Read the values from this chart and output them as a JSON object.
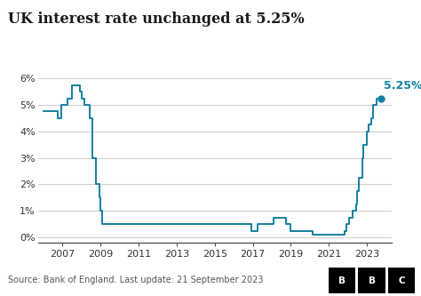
{
  "title": "UK interest rate unchanged at 5.25%",
  "line_color": "#1380a1",
  "annotation_text": "5.25%",
  "annotation_color": "#1380a1",
  "source_text": "Source: Bank of England. Last update: 21 September 2023",
  "xlim": [
    2005.7,
    2024.3
  ],
  "ylim": [
    -0.2,
    6.5
  ],
  "yticks": [
    0,
    1,
    2,
    3,
    4,
    5,
    6
  ],
  "ytick_labels": [
    "0%",
    "1%",
    "2%",
    "3%",
    "4%",
    "5%",
    "6%"
  ],
  "xticks": [
    2007,
    2009,
    2011,
    2013,
    2015,
    2017,
    2019,
    2021,
    2023
  ],
  "background_color": "#ffffff",
  "data": [
    [
      2006.0,
      4.75
    ],
    [
      2006.75,
      4.75
    ],
    [
      2006.75,
      4.5
    ],
    [
      2006.917,
      4.5
    ],
    [
      2006.917,
      5.0
    ],
    [
      2007.25,
      5.0
    ],
    [
      2007.25,
      5.25
    ],
    [
      2007.5,
      5.25
    ],
    [
      2007.5,
      5.75
    ],
    [
      2007.917,
      5.75
    ],
    [
      2007.917,
      5.5
    ],
    [
      2008.0,
      5.5
    ],
    [
      2008.0,
      5.25
    ],
    [
      2008.167,
      5.25
    ],
    [
      2008.167,
      5.0
    ],
    [
      2008.417,
      5.0
    ],
    [
      2008.417,
      4.5
    ],
    [
      2008.583,
      4.5
    ],
    [
      2008.583,
      3.0
    ],
    [
      2008.75,
      3.0
    ],
    [
      2008.75,
      2.0
    ],
    [
      2008.917,
      2.0
    ],
    [
      2008.917,
      1.5
    ],
    [
      2009.0,
      1.5
    ],
    [
      2009.0,
      1.0
    ],
    [
      2009.083,
      1.0
    ],
    [
      2009.083,
      0.5
    ],
    [
      2016.917,
      0.5
    ],
    [
      2016.917,
      0.25
    ],
    [
      2017.25,
      0.25
    ],
    [
      2017.25,
      0.5
    ],
    [
      2018.083,
      0.5
    ],
    [
      2018.083,
      0.75
    ],
    [
      2018.75,
      0.75
    ],
    [
      2018.75,
      0.5
    ],
    [
      2019.0,
      0.5
    ],
    [
      2019.0,
      0.25
    ],
    [
      2020.167,
      0.25
    ],
    [
      2020.167,
      0.1
    ],
    [
      2021.833,
      0.1
    ],
    [
      2021.833,
      0.25
    ],
    [
      2021.917,
      0.25
    ],
    [
      2021.917,
      0.5
    ],
    [
      2022.083,
      0.5
    ],
    [
      2022.083,
      0.75
    ],
    [
      2022.25,
      0.75
    ],
    [
      2022.25,
      1.0
    ],
    [
      2022.417,
      1.0
    ],
    [
      2022.417,
      1.25
    ],
    [
      2022.5,
      1.25
    ],
    [
      2022.5,
      1.75
    ],
    [
      2022.583,
      1.75
    ],
    [
      2022.583,
      2.25
    ],
    [
      2022.75,
      2.25
    ],
    [
      2022.75,
      3.0
    ],
    [
      2022.833,
      3.0
    ],
    [
      2022.833,
      3.5
    ],
    [
      2022.917,
      3.5
    ],
    [
      2023.0,
      3.5
    ],
    [
      2023.0,
      4.0
    ],
    [
      2023.083,
      4.0
    ],
    [
      2023.083,
      4.25
    ],
    [
      2023.25,
      4.25
    ],
    [
      2023.25,
      4.5
    ],
    [
      2023.333,
      4.5
    ],
    [
      2023.333,
      5.0
    ],
    [
      2023.5,
      5.0
    ],
    [
      2023.5,
      5.25
    ],
    [
      2023.75,
      5.25
    ]
  ]
}
